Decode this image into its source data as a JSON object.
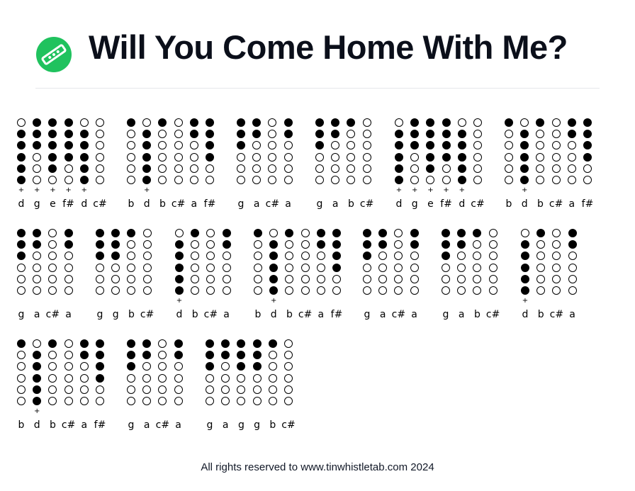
{
  "header": {
    "title": "Will You Come Home With Me?",
    "logo_icon": "tin-whistle-icon",
    "logo_color": "#20c25e"
  },
  "tab": {
    "groups": [
      {
        "notes": [
          {
            "name": "d",
            "holes": "011111",
            "plus": true
          },
          {
            "name": "g",
            "holes": "111000",
            "plus": true
          },
          {
            "name": "e",
            "holes": "111110",
            "plus": true
          },
          {
            "name": "f#",
            "holes": "111100",
            "plus": true
          },
          {
            "name": "d",
            "holes": "011111",
            "plus": true
          },
          {
            "name": "c#",
            "holes": "000000",
            "plus": false
          }
        ]
      },
      {
        "notes": [
          {
            "name": "b",
            "holes": "100000",
            "plus": false
          },
          {
            "name": "d",
            "holes": "011111",
            "plus": true
          },
          {
            "name": "b",
            "holes": "100000",
            "plus": false
          },
          {
            "name": "c#",
            "holes": "000000",
            "plus": false
          },
          {
            "name": "a",
            "holes": "110000",
            "plus": false
          },
          {
            "name": "f#",
            "holes": "111100",
            "plus": false
          }
        ]
      },
      {
        "notes": [
          {
            "name": "g",
            "holes": "111000",
            "plus": false
          },
          {
            "name": "a",
            "holes": "110000",
            "plus": false
          },
          {
            "name": "c#",
            "holes": "000000",
            "plus": false
          },
          {
            "name": "a",
            "holes": "110000",
            "plus": false
          }
        ]
      },
      {
        "notes": [
          {
            "name": "g",
            "holes": "111000",
            "plus": false
          },
          {
            "name": "a",
            "holes": "110000",
            "plus": false
          },
          {
            "name": "b",
            "holes": "100000",
            "plus": false
          },
          {
            "name": "c#",
            "holes": "000000",
            "plus": false
          }
        ]
      },
      {
        "notes": [
          {
            "name": "d",
            "holes": "011111",
            "plus": true
          },
          {
            "name": "g",
            "holes": "111000",
            "plus": true
          },
          {
            "name": "e",
            "holes": "111110",
            "plus": true
          },
          {
            "name": "f#",
            "holes": "111100",
            "plus": true
          },
          {
            "name": "d",
            "holes": "011111",
            "plus": true
          },
          {
            "name": "c#",
            "holes": "000000",
            "plus": false
          }
        ]
      },
      {
        "notes": [
          {
            "name": "b",
            "holes": "100000",
            "plus": false
          },
          {
            "name": "d",
            "holes": "011111",
            "plus": true
          },
          {
            "name": "b",
            "holes": "100000",
            "plus": false
          },
          {
            "name": "c#",
            "holes": "000000",
            "plus": false
          },
          {
            "name": "a",
            "holes": "110000",
            "plus": false
          },
          {
            "name": "f#",
            "holes": "111100",
            "plus": false
          }
        ]
      },
      {
        "notes": [
          {
            "name": "g",
            "holes": "111000",
            "plus": false
          },
          {
            "name": "a",
            "holes": "110000",
            "plus": false
          },
          {
            "name": "c#",
            "holes": "000000",
            "plus": false
          },
          {
            "name": "a",
            "holes": "110000",
            "plus": false
          }
        ]
      },
      {
        "notes": [
          {
            "name": "g",
            "holes": "111000",
            "plus": false
          },
          {
            "name": "g",
            "holes": "111000",
            "plus": false
          },
          {
            "name": "b",
            "holes": "100000",
            "plus": false
          },
          {
            "name": "c#",
            "holes": "000000",
            "plus": false
          }
        ]
      },
      {
        "notes": [
          {
            "name": "d",
            "holes": "011111",
            "plus": true
          },
          {
            "name": "b",
            "holes": "100000",
            "plus": false
          },
          {
            "name": "c#",
            "holes": "000000",
            "plus": false
          },
          {
            "name": "a",
            "holes": "110000",
            "plus": false
          }
        ]
      },
      {
        "notes": [
          {
            "name": "b",
            "holes": "100000",
            "plus": false
          },
          {
            "name": "d",
            "holes": "011111",
            "plus": true
          },
          {
            "name": "b",
            "holes": "100000",
            "plus": false
          },
          {
            "name": "c#",
            "holes": "000000",
            "plus": false
          },
          {
            "name": "a",
            "holes": "110000",
            "plus": false
          },
          {
            "name": "f#",
            "holes": "111100",
            "plus": false
          }
        ]
      },
      {
        "notes": [
          {
            "name": "g",
            "holes": "111000",
            "plus": false
          },
          {
            "name": "a",
            "holes": "110000",
            "plus": false
          },
          {
            "name": "c#",
            "holes": "000000",
            "plus": false
          },
          {
            "name": "a",
            "holes": "110000",
            "plus": false
          }
        ]
      },
      {
        "notes": [
          {
            "name": "g",
            "holes": "111000",
            "plus": false
          },
          {
            "name": "a",
            "holes": "110000",
            "plus": false
          },
          {
            "name": "b",
            "holes": "100000",
            "plus": false
          },
          {
            "name": "c#",
            "holes": "000000",
            "plus": false
          }
        ]
      },
      {
        "notes": [
          {
            "name": "d",
            "holes": "011111",
            "plus": true
          },
          {
            "name": "b",
            "holes": "100000",
            "plus": false
          },
          {
            "name": "c#",
            "holes": "000000",
            "plus": false
          },
          {
            "name": "a",
            "holes": "110000",
            "plus": false
          }
        ]
      },
      {
        "notes": [
          {
            "name": "b",
            "holes": "100000",
            "plus": false
          },
          {
            "name": "d",
            "holes": "011111",
            "plus": true
          },
          {
            "name": "b",
            "holes": "100000",
            "plus": false
          },
          {
            "name": "c#",
            "holes": "000000",
            "plus": false
          },
          {
            "name": "a",
            "holes": "110000",
            "plus": false
          },
          {
            "name": "f#",
            "holes": "111100",
            "plus": false
          }
        ]
      },
      {
        "notes": [
          {
            "name": "g",
            "holes": "111000",
            "plus": false
          },
          {
            "name": "a",
            "holes": "110000",
            "plus": false
          },
          {
            "name": "c#",
            "holes": "000000",
            "plus": false
          },
          {
            "name": "a",
            "holes": "110000",
            "plus": false
          }
        ]
      },
      {
        "notes": [
          {
            "name": "g",
            "holes": "111000",
            "plus": false
          },
          {
            "name": "a",
            "holes": "110000",
            "plus": false
          },
          {
            "name": "g",
            "holes": "111000",
            "plus": false
          },
          {
            "name": "g",
            "holes": "111000",
            "plus": false
          },
          {
            "name": "b",
            "holes": "100000",
            "plus": false
          },
          {
            "name": "c#",
            "holes": "000000",
            "plus": false
          }
        ]
      }
    ]
  },
  "footer": {
    "text": "All rights reserved to www.tinwhistletab.com 2024"
  }
}
